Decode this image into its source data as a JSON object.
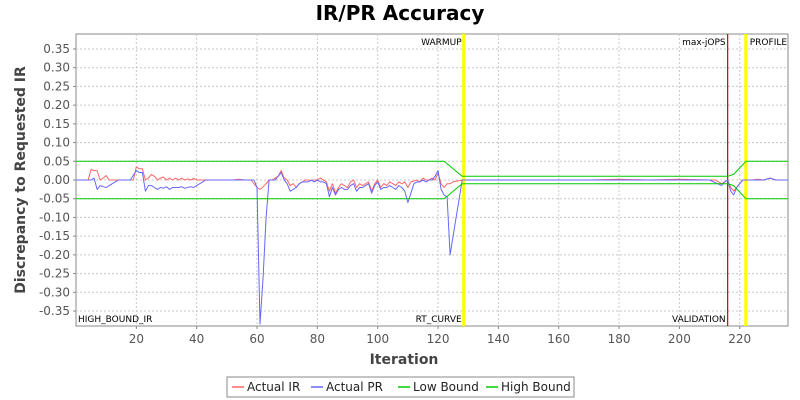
{
  "chart_data": {
    "type": "line",
    "title": "IR/PR Accuracy",
    "xlabel": "Iteration",
    "ylabel": "Discrepancy to Requested IR",
    "xlim": [
      0,
      236
    ],
    "ylim": [
      -0.39,
      0.39
    ],
    "xticks": [
      20,
      40,
      60,
      80,
      100,
      120,
      140,
      160,
      180,
      200,
      220
    ],
    "yticks": [
      0.35,
      0.3,
      0.25,
      0.2,
      0.15,
      0.1,
      0.05,
      0.0,
      -0.05,
      -0.1,
      -0.15,
      -0.2,
      -0.25,
      -0.3,
      -0.35
    ],
    "grid": true,
    "legend_position": "bottom",
    "markers": [
      {
        "label": "WARMUP",
        "x": 128.5,
        "color": "#ffff00",
        "label_pos": "top"
      },
      {
        "label": "max-jOPS",
        "x": 216,
        "color": "#cc0000",
        "label_pos": "top"
      },
      {
        "label": "PROFILE",
        "x": 222,
        "color": "#ffff00",
        "label_pos": "top"
      },
      {
        "label": "RT_CURVE",
        "x": 128.5,
        "color": "#ffff00",
        "label_pos": "bottom"
      },
      {
        "label": "VALIDATION",
        "x": 216,
        "color": "#cc0000",
        "label_pos": "bottom"
      },
      {
        "label": "HIGH_BOUND_IR",
        "x": 0,
        "color": "none",
        "label_pos": "bottom"
      }
    ],
    "series": [
      {
        "name": "Actual IR",
        "color": "#ff6666",
        "points": [
          [
            0,
            0
          ],
          [
            4,
            0
          ],
          [
            5,
            0.028
          ],
          [
            6,
            0.025
          ],
          [
            7,
            0.025
          ],
          [
            8,
            0
          ],
          [
            9,
            0.005
          ],
          [
            10,
            0.012
          ],
          [
            11,
            0
          ],
          [
            12,
            0
          ],
          [
            14,
            0
          ],
          [
            16,
            0
          ],
          [
            18,
            0
          ],
          [
            19,
            0
          ],
          [
            20,
            0.035
          ],
          [
            21,
            0.03
          ],
          [
            22,
            0.03
          ],
          [
            23,
            0
          ],
          [
            24,
            0.005
          ],
          [
            25,
            0.015
          ],
          [
            26,
            0.01
          ],
          [
            27,
            0
          ],
          [
            28,
            0.005
          ],
          [
            29,
            0.008
          ],
          [
            30,
            0
          ],
          [
            31,
            0.005
          ],
          [
            32,
            0
          ],
          [
            33,
            0.005
          ],
          [
            34,
            0
          ],
          [
            35,
            0.005
          ],
          [
            36,
            0
          ],
          [
            37,
            0.003
          ],
          [
            38,
            0
          ],
          [
            39,
            0.004
          ],
          [
            40,
            0
          ],
          [
            42,
            0
          ],
          [
            44,
            0
          ],
          [
            46,
            0
          ],
          [
            48,
            0
          ],
          [
            50,
            0
          ],
          [
            52,
            0
          ],
          [
            54,
            0.002
          ],
          [
            56,
            0
          ],
          [
            58,
            0
          ],
          [
            60,
            -0.02
          ],
          [
            61,
            -0.025
          ],
          [
            62,
            -0.018
          ],
          [
            63,
            -0.01
          ],
          [
            64,
            0
          ],
          [
            65,
            0
          ],
          [
            66,
            0.005
          ],
          [
            67,
            0.01
          ],
          [
            68,
            0.025
          ],
          [
            69,
            0.005
          ],
          [
            70,
            0
          ],
          [
            71,
            -0.015
          ],
          [
            72,
            -0.01
          ],
          [
            73,
            -0.02
          ],
          [
            74,
            -0.01
          ],
          [
            75,
            -0.005
          ],
          [
            76,
            0
          ],
          [
            77,
            0
          ],
          [
            78,
            -0.002
          ],
          [
            79,
            0
          ],
          [
            80,
            0
          ],
          [
            81,
            0.005
          ],
          [
            82,
            0
          ],
          [
            83,
            -0.005
          ],
          [
            84,
            -0.03
          ],
          [
            85,
            -0.01
          ],
          [
            86,
            -0.035
          ],
          [
            87,
            -0.02
          ],
          [
            88,
            -0.01
          ],
          [
            89,
            -0.015
          ],
          [
            90,
            -0.02
          ],
          [
            91,
            -0.005
          ],
          [
            92,
            0
          ],
          [
            93,
            -0.02
          ],
          [
            94,
            -0.01
          ],
          [
            95,
            -0.015
          ],
          [
            96,
            -0.01
          ],
          [
            97,
            -0.005
          ],
          [
            98,
            -0.03
          ],
          [
            99,
            -0.01
          ],
          [
            100,
            0
          ],
          [
            101,
            -0.02
          ],
          [
            102,
            -0.01
          ],
          [
            103,
            -0.015
          ],
          [
            104,
            -0.005
          ],
          [
            105,
            -0.01
          ],
          [
            106,
            -0.015
          ],
          [
            107,
            -0.005
          ],
          [
            108,
            -0.01
          ],
          [
            109,
            -0.005
          ],
          [
            110,
            -0.02
          ],
          [
            111,
            -0.005
          ],
          [
            112,
            -0.003
          ],
          [
            113,
            0
          ],
          [
            114,
            -0.005
          ],
          [
            115,
            0.005
          ],
          [
            116,
            0
          ],
          [
            117,
            0
          ],
          [
            118,
            0.005
          ],
          [
            119,
            0
          ],
          [
            120,
            0.018
          ],
          [
            121,
            -0.01
          ],
          [
            122,
            -0.02
          ],
          [
            123,
            -0.01
          ],
          [
            124,
            -0.01
          ],
          [
            125,
            -0.005
          ],
          [
            126,
            -0.003
          ],
          [
            127,
            -0.002
          ],
          [
            128,
            0
          ],
          [
            130,
            0
          ],
          [
            140,
            0
          ],
          [
            150,
            0
          ],
          [
            160,
            0
          ],
          [
            170,
            0
          ],
          [
            180,
            0.002
          ],
          [
            190,
            0
          ],
          [
            200,
            0.002
          ],
          [
            210,
            0
          ],
          [
            212,
            0
          ],
          [
            214,
            -0.01
          ],
          [
            215,
            -0.005
          ],
          [
            216,
            0
          ],
          [
            217,
            -0.02
          ],
          [
            218,
            -0.03
          ],
          [
            219,
            -0.02
          ],
          [
            220,
            -0.01
          ],
          [
            221,
            0
          ],
          [
            222,
            0
          ],
          [
            224,
            0
          ],
          [
            226,
            0.002
          ],
          [
            228,
            0
          ],
          [
            230,
            0.005
          ],
          [
            232,
            0
          ],
          [
            234,
            0
          ],
          [
            236,
            0
          ]
        ]
      },
      {
        "name": "Actual PR",
        "color": "#6666ff",
        "points": [
          [
            0,
            0
          ],
          [
            4,
            0
          ],
          [
            5,
            0
          ],
          [
            6,
            0.005
          ],
          [
            7,
            -0.025
          ],
          [
            8,
            -0.015
          ],
          [
            9,
            -0.018
          ],
          [
            10,
            -0.02
          ],
          [
            11,
            -0.015
          ],
          [
            12,
            -0.01
          ],
          [
            13,
            -0.005
          ],
          [
            14,
            0
          ],
          [
            18,
            0
          ],
          [
            20,
            0.025
          ],
          [
            21,
            0.02
          ],
          [
            22,
            0.02
          ],
          [
            23,
            -0.03
          ],
          [
            24,
            -0.015
          ],
          [
            25,
            -0.015
          ],
          [
            26,
            -0.02
          ],
          [
            27,
            -0.025
          ],
          [
            28,
            -0.02
          ],
          [
            29,
            -0.022
          ],
          [
            30,
            -0.018
          ],
          [
            31,
            -0.025
          ],
          [
            32,
            -0.02
          ],
          [
            33,
            -0.02
          ],
          [
            34,
            -0.02
          ],
          [
            35,
            -0.018
          ],
          [
            36,
            -0.022
          ],
          [
            37,
            -0.02
          ],
          [
            38,
            -0.018
          ],
          [
            39,
            -0.02
          ],
          [
            40,
            -0.015
          ],
          [
            41,
            -0.01
          ],
          [
            42,
            -0.005
          ],
          [
            43,
            0
          ],
          [
            44,
            0
          ],
          [
            46,
            0
          ],
          [
            48,
            0
          ],
          [
            50,
            0
          ],
          [
            52,
            0
          ],
          [
            54,
            0
          ],
          [
            56,
            0
          ],
          [
            58,
            0
          ],
          [
            59,
            0
          ],
          [
            60,
            -0.02
          ],
          [
            61,
            -0.385
          ],
          [
            62,
            -0.26
          ],
          [
            63,
            -0.1
          ],
          [
            64,
            0
          ],
          [
            65,
            0
          ],
          [
            66,
            0
          ],
          [
            67,
            0.01
          ],
          [
            68,
            0.02
          ],
          [
            69,
            0
          ],
          [
            70,
            -0.01
          ],
          [
            71,
            -0.03
          ],
          [
            72,
            -0.025
          ],
          [
            73,
            -0.02
          ],
          [
            74,
            -0.01
          ],
          [
            75,
            -0.005
          ],
          [
            76,
            -0.005
          ],
          [
            77,
            -0.005
          ],
          [
            78,
            0
          ],
          [
            79,
            -0.005
          ],
          [
            80,
            0
          ],
          [
            81,
            -0.005
          ],
          [
            82,
            -0.005
          ],
          [
            83,
            -0.01
          ],
          [
            84,
            -0.045
          ],
          [
            85,
            -0.02
          ],
          [
            86,
            -0.04
          ],
          [
            87,
            -0.025
          ],
          [
            88,
            -0.02
          ],
          [
            89,
            -0.025
          ],
          [
            90,
            -0.025
          ],
          [
            91,
            -0.015
          ],
          [
            92,
            -0.01
          ],
          [
            93,
            -0.03
          ],
          [
            94,
            -0.02
          ],
          [
            95,
            -0.02
          ],
          [
            96,
            -0.015
          ],
          [
            97,
            -0.01
          ],
          [
            98,
            -0.035
          ],
          [
            99,
            -0.015
          ],
          [
            100,
            -0.005
          ],
          [
            101,
            -0.025
          ],
          [
            102,
            -0.02
          ],
          [
            103,
            -0.02
          ],
          [
            104,
            -0.015
          ],
          [
            105,
            -0.02
          ],
          [
            106,
            -0.025
          ],
          [
            107,
            -0.015
          ],
          [
            108,
            -0.02
          ],
          [
            109,
            -0.03
          ],
          [
            110,
            -0.06
          ],
          [
            111,
            -0.035
          ],
          [
            112,
            -0.01
          ],
          [
            113,
            -0.005
          ],
          [
            114,
            -0.005
          ],
          [
            115,
            0
          ],
          [
            116,
            -0.005
          ],
          [
            117,
            0
          ],
          [
            118,
            0
          ],
          [
            119,
            0.01
          ],
          [
            120,
            0.025
          ],
          [
            121,
            -0.025
          ],
          [
            122,
            -0.04
          ],
          [
            123,
            -0.045
          ],
          [
            124,
            -0.2
          ],
          [
            125,
            -0.15
          ],
          [
            126,
            -0.1
          ],
          [
            127,
            -0.05
          ],
          [
            128,
            0
          ],
          [
            130,
            0
          ],
          [
            140,
            0
          ],
          [
            150,
            0
          ],
          [
            160,
            0
          ],
          [
            170,
            0
          ],
          [
            180,
            0
          ],
          [
            190,
            0
          ],
          [
            200,
            0
          ],
          [
            210,
            0
          ],
          [
            214,
            -0.015
          ],
          [
            215,
            -0.005
          ],
          [
            216,
            0
          ],
          [
            217,
            -0.03
          ],
          [
            218,
            -0.04
          ],
          [
            219,
            -0.02
          ],
          [
            220,
            -0.01
          ],
          [
            221,
            0
          ],
          [
            222,
            0
          ],
          [
            224,
            0
          ],
          [
            226,
            0
          ],
          [
            228,
            0
          ],
          [
            230,
            0.005
          ],
          [
            232,
            0
          ],
          [
            234,
            0
          ],
          [
            236,
            0
          ]
        ]
      },
      {
        "name": "Low Bound",
        "color": "#00cc00",
        "points": [
          [
            0,
            -0.05
          ],
          [
            122,
            -0.05
          ],
          [
            125,
            -0.03
          ],
          [
            128,
            -0.01
          ],
          [
            214,
            -0.01
          ],
          [
            216,
            -0.01
          ],
          [
            218,
            -0.015
          ],
          [
            222,
            -0.05
          ],
          [
            236,
            -0.05
          ]
        ]
      },
      {
        "name": "High Bound",
        "color": "#00cc00",
        "points": [
          [
            0,
            0.05
          ],
          [
            122,
            0.05
          ],
          [
            125,
            0.03
          ],
          [
            128,
            0.01
          ],
          [
            214,
            0.01
          ],
          [
            216,
            0.01
          ],
          [
            218,
            0.015
          ],
          [
            222,
            0.05
          ],
          [
            236,
            0.05
          ]
        ]
      }
    ]
  }
}
